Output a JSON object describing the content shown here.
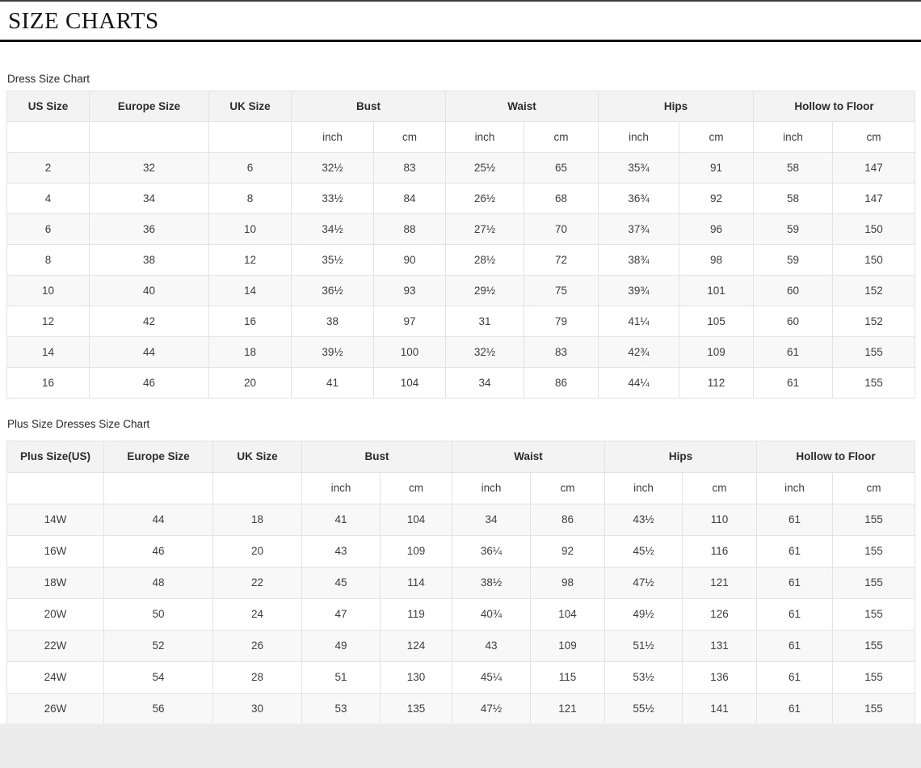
{
  "page": {
    "title": "SIZE CHARTS"
  },
  "colors": {
    "header_bg": "#f3f3f3",
    "stripe_bg": "#f8f8f8",
    "border": "#e3e3e3",
    "footer_bg": "#ececec",
    "rule": "#121212"
  },
  "tables": [
    {
      "section_label": "Dress Size Chart",
      "column_headers": [
        "US Size",
        "Europe Size",
        "UK Size",
        "Bust",
        "Waist",
        "Hips",
        "Hollow to Floor"
      ],
      "unit_labels": [
        "inch",
        "cm",
        "inch",
        "cm",
        "inch",
        "cm",
        "inch",
        "cm"
      ],
      "rows": [
        [
          "2",
          "32",
          "6",
          "32½",
          "83",
          "25½",
          "65",
          "35¾",
          "91",
          "58",
          "147"
        ],
        [
          "4",
          "34",
          "8",
          "33½",
          "84",
          "26½",
          "68",
          "36¾",
          "92",
          "58",
          "147"
        ],
        [
          "6",
          "36",
          "10",
          "34½",
          "88",
          "27½",
          "70",
          "37¾",
          "96",
          "59",
          "150"
        ],
        [
          "8",
          "38",
          "12",
          "35½",
          "90",
          "28½",
          "72",
          "38¾",
          "98",
          "59",
          "150"
        ],
        [
          "10",
          "40",
          "14",
          "36½",
          "93",
          "29½",
          "75",
          "39¾",
          "101",
          "60",
          "152"
        ],
        [
          "12",
          "42",
          "16",
          "38",
          "97",
          "31",
          "79",
          "41¼",
          "105",
          "60",
          "152"
        ],
        [
          "14",
          "44",
          "18",
          "39½",
          "100",
          "32½",
          "83",
          "42¾",
          "109",
          "61",
          "155"
        ],
        [
          "16",
          "46",
          "20",
          "41",
          "104",
          "34",
          "86",
          "44¼",
          "112",
          "61",
          "155"
        ]
      ]
    },
    {
      "section_label": "Plus Size Dresses Size Chart",
      "column_headers": [
        "Plus Size(US)",
        "Europe Size",
        "UK Size",
        "Bust",
        "Waist",
        "Hips",
        "Hollow to Floor"
      ],
      "unit_labels": [
        "inch",
        "cm",
        "inch",
        "cm",
        "inch",
        "cm",
        "inch",
        "cm"
      ],
      "rows": [
        [
          "14W",
          "44",
          "18",
          "41",
          "104",
          "34",
          "86",
          "43½",
          "110",
          "61",
          "155"
        ],
        [
          "16W",
          "46",
          "20",
          "43",
          "109",
          "36¼",
          "92",
          "45½",
          "116",
          "61",
          "155"
        ],
        [
          "18W",
          "48",
          "22",
          "45",
          "114",
          "38½",
          "98",
          "47½",
          "121",
          "61",
          "155"
        ],
        [
          "20W",
          "50",
          "24",
          "47",
          "119",
          "40¾",
          "104",
          "49½",
          "126",
          "61",
          "155"
        ],
        [
          "22W",
          "52",
          "26",
          "49",
          "124",
          "43",
          "109",
          "51½",
          "131",
          "61",
          "155"
        ],
        [
          "24W",
          "54",
          "28",
          "51",
          "130",
          "45¼",
          "115",
          "53½",
          "136",
          "61",
          "155"
        ],
        [
          "26W",
          "56",
          "30",
          "53",
          "135",
          "47½",
          "121",
          "55½",
          "141",
          "61",
          "155"
        ]
      ]
    }
  ]
}
